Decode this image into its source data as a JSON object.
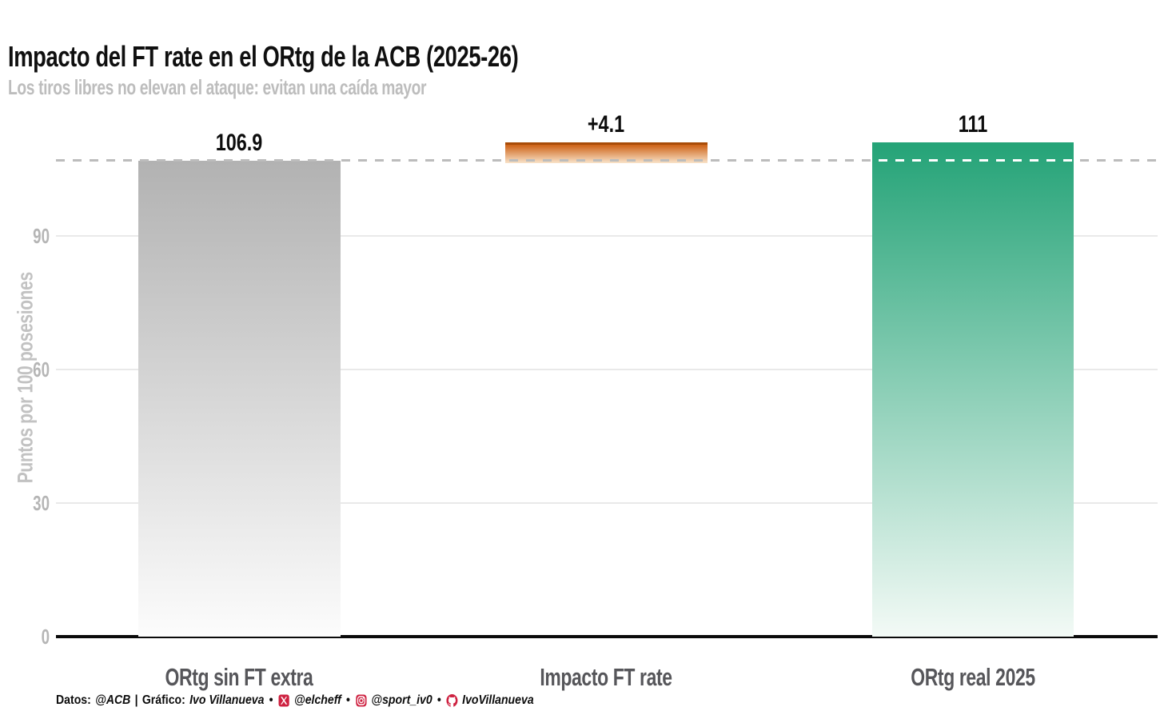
{
  "header": {
    "title": "Impacto del FT rate en el ORtg de la ACB (2025-26)",
    "subtitle": "Los tiros libres no elevan el ataque: evitan una caída mayor"
  },
  "chart_data": {
    "type": "bar",
    "subtype": "waterfall",
    "title": "Impacto del FT rate en el ORtg de la ACB (2025-26)",
    "subtitle": "Los tiros libres no elevan el ataque: evitan una caída mayor",
    "categories": [
      "ORtg sin FT extra",
      "Impacto FT rate",
      "ORtg real 2025"
    ],
    "values": [
      106.9,
      4.1,
      111
    ],
    "bars": [
      {
        "category": "ORtg sin FT extra",
        "from": 0,
        "to": 106.9,
        "value_label": "106.9",
        "color_top": "#b2b2b2",
        "color_bottom": "#fcfcfc"
      },
      {
        "category": "Impacto FT rate",
        "from": 106.9,
        "to": 111,
        "value_label": "+4.1",
        "color_top": "#cd6115",
        "color_bottom": "#f9e3c9",
        "edge_color": "#a84c08"
      },
      {
        "category": "ORtg real 2025",
        "from": 0,
        "to": 111,
        "value_label": "111",
        "color_top": "#24a377",
        "color_bottom": "#f3faf6"
      }
    ],
    "xlabel": "",
    "ylabel": "Puntos por 100 posesiones",
    "yticks": [
      0,
      30,
      60,
      90
    ],
    "ytick_labels": [
      "0",
      "30",
      "60",
      "90"
    ],
    "ylim": [
      0,
      115
    ],
    "grid": "horizontal",
    "legend": "none",
    "reference_line": {
      "value": 106.9,
      "style": "dashed",
      "color": "#bcbcbc"
    }
  },
  "footer": {
    "datos_label": "Datos:",
    "datos_value": "@ACB",
    "separator": "|",
    "grafico_label": "Gráfico:",
    "grafico_value": "Ivo Villanueva",
    "bullet": "•",
    "handles": [
      {
        "icon": "x-twitter-icon",
        "text": "@elcheff"
      },
      {
        "icon": "instagram-icon",
        "text": "@sport_iv0"
      },
      {
        "icon": "github-icon",
        "text": "IvoVillanueva"
      }
    ],
    "accent_color": "#ce2140"
  },
  "colors": {
    "background": "#ffffff",
    "title": "#0f0f0f",
    "subtitle": "#bdbdbd",
    "axis_text": "#b5b5b5",
    "category_text": "#56565a",
    "gridline": "#e9e9e9",
    "axis_line": "#0a0a0a",
    "bar_gray": "#b2b2b2",
    "bar_orange": "#cd6115",
    "bar_green": "#24a377",
    "footer_accent": "#ce2140"
  }
}
